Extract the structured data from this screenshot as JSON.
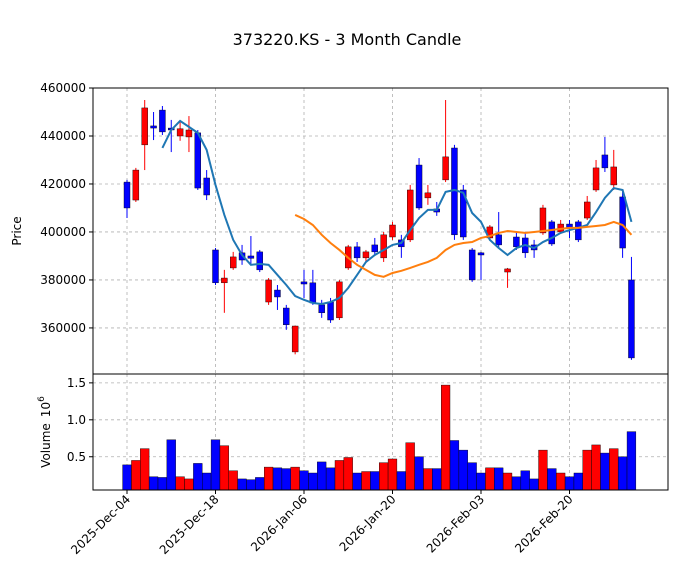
{
  "chart_data": {
    "type": "candlestick",
    "title": "373220.KS - 3 Month Candle",
    "categories": [
      "2025-Dec-04",
      null,
      null,
      null,
      null,
      null,
      null,
      null,
      null,
      null,
      "2025-Dec-18",
      null,
      null,
      null,
      null,
      null,
      null,
      null,
      null,
      null,
      "2026-Jan-06",
      null,
      null,
      null,
      null,
      null,
      null,
      null,
      null,
      null,
      "2026-Jan-20",
      null,
      null,
      null,
      null,
      null,
      null,
      null,
      null,
      null,
      "2026-Feb-03",
      null,
      null,
      null,
      null,
      null,
      null,
      null,
      null,
      null,
      "2026-Feb-20",
      null,
      null,
      null,
      null,
      null,
      null,
      null
    ],
    "open": [
      420800,
      413300,
      436300,
      444200,
      450800,
      443300,
      440000,
      439600,
      441300,
      422500,
      392500,
      378800,
      385000,
      391300,
      390000,
      391700,
      370800,
      375800,
      368300,
      350000,
      379200,
      378800,
      369600,
      370800,
      364200,
      385000,
      393800,
      389200,
      394600,
      389200,
      397900,
      396700,
      396700,
      427900,
      414200,
      409600,
      421700,
      435000,
      417500,
      392500,
      391300,
      397500,
      398800,
      383300,
      397900,
      397500,
      394600,
      399600,
      404200,
      400000,
      403300,
      404200,
      405800,
      417500,
      432100,
      419600,
      414600,
      380000
    ],
    "high": [
      421700,
      426700,
      455000,
      450000,
      452500,
      446700,
      446000,
      448300,
      442500,
      425800,
      393300,
      384200,
      391700,
      394600,
      398300,
      392500,
      380800,
      377900,
      369600,
      361000,
      384200,
      384200,
      371700,
      372500,
      380000,
      394600,
      395800,
      392500,
      397500,
      400000,
      404200,
      398800,
      419600,
      430800,
      419600,
      412500,
      455000,
      436300,
      419600,
      393300,
      391700,
      402900,
      408300,
      385000,
      400000,
      400000,
      396700,
      411300,
      405000,
      405000,
      405000,
      405000,
      415000,
      430000,
      439600,
      434200,
      417500,
      389600
    ],
    "low": [
      405800,
      412500,
      425800,
      438300,
      440400,
      433300,
      438000,
      433300,
      417500,
      413300,
      377900,
      366300,
      384200,
      386300,
      386300,
      383300,
      369600,
      367500,
      359200,
      349000,
      372500,
      369600,
      364200,
      362100,
      363300,
      384200,
      387500,
      387500,
      390400,
      387500,
      396700,
      389200,
      395800,
      409200,
      411300,
      406700,
      420800,
      396700,
      396700,
      379200,
      380000,
      396700,
      393300,
      376700,
      392500,
      389200,
      389200,
      398800,
      394200,
      399200,
      397500,
      395800,
      405000,
      416700,
      425000,
      417500,
      389200,
      346700
    ],
    "close": [
      410000,
      425800,
      451700,
      443300,
      441700,
      442500,
      443000,
      442500,
      418300,
      415400,
      378800,
      380800,
      389600,
      388300,
      389000,
      384200,
      380000,
      372900,
      361300,
      360800,
      378300,
      370400,
      366300,
      363300,
      379200,
      393800,
      389200,
      391700,
      391700,
      398800,
      402900,
      393800,
      417500,
      410000,
      416300,
      408300,
      431300,
      398800,
      397900,
      380000,
      390400,
      402100,
      394600,
      384600,
      393800,
      391300,
      392500,
      410000,
      395000,
      403300,
      401700,
      396700,
      412500,
      426700,
      426700,
      427100,
      393300,
      347500
    ],
    "up_color": "#ff0000",
    "down_color": "#0000ff",
    "ylabel": "Price",
    "ylim": [
      340800,
      460000
    ],
    "yticks": [
      360000,
      380000,
      400000,
      420000,
      440000,
      460000
    ],
    "grid": true,
    "series": [
      {
        "color": "#1f77b4",
        "values": [
          null,
          null,
          null,
          null,
          435000,
          442500,
          446300,
          443800,
          441300,
          434200,
          419600,
          407100,
          396700,
          390400,
          386300,
          386700,
          386300,
          382100,
          377900,
          373300,
          371700,
          370400,
          370000,
          370800,
          372500,
          376700,
          382100,
          387500,
          390400,
          392500,
          394600,
          395400,
          400800,
          405800,
          409200,
          409200,
          416700,
          417500,
          416300,
          407900,
          404200,
          396700,
          393300,
          390400,
          393300,
          394600,
          393300,
          395800,
          397500,
          399600,
          400800,
          401700,
          402900,
          408300,
          414200,
          418300,
          417500,
          404200
        ]
      },
      {
        "color": "#ff7f0e",
        "values": [
          null,
          null,
          null,
          null,
          null,
          null,
          null,
          null,
          null,
          null,
          null,
          null,
          null,
          null,
          null,
          null,
          null,
          null,
          null,
          407100,
          405400,
          402900,
          398800,
          395400,
          392500,
          389200,
          386300,
          384200,
          382100,
          381300,
          382900,
          383800,
          385000,
          386300,
          387500,
          389200,
          392500,
          394600,
          395400,
          395800,
          397500,
          398300,
          399600,
          400400,
          400000,
          399600,
          400000,
          400400,
          400800,
          401300,
          401700,
          401700,
          402100,
          402500,
          402900,
          404200,
          402900,
          398800
        ]
      }
    ],
    "volume": {
      "ylabel": "Volume",
      "offset_base": "10",
      "offset_exponent": "6",
      "values": [
        0.39,
        0.45,
        0.61,
        0.23,
        0.22,
        0.73,
        0.23,
        0.2,
        0.41,
        0.28,
        0.73,
        0.65,
        0.31,
        0.2,
        0.19,
        0.22,
        0.36,
        0.35,
        0.34,
        0.36,
        0.31,
        0.28,
        0.43,
        0.35,
        0.45,
        0.49,
        0.28,
        0.3,
        0.3,
        0.42,
        0.47,
        0.3,
        0.69,
        0.5,
        0.34,
        0.34,
        1.47,
        0.72,
        0.59,
        0.42,
        0.28,
        0.35,
        0.35,
        0.28,
        0.23,
        0.31,
        0.2,
        0.59,
        0.34,
        0.28,
        0.23,
        0.28,
        0.59,
        0.66,
        0.55,
        0.61,
        0.5,
        0.84
      ],
      "ylim": [
        0.05,
        1.62
      ],
      "yticks": [
        0.5,
        {
          "value": 1.0,
          "label": "1.0"
        },
        1.5
      ]
    }
  }
}
